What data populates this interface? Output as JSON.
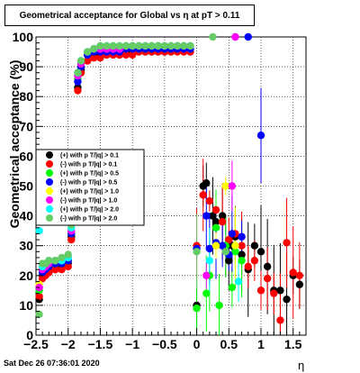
{
  "stamp": "Sat Dec 26 07:36:01 2020",
  "chart_data": {
    "type": "scatter",
    "title": "Geometrical acceptance for Global vs  η at pT > 0.11",
    "xlabel": "η",
    "ylabel": "Geometrical acceptance (%)",
    "xlim": [
      -2.5,
      1.7
    ],
    "ylim": [
      0,
      100
    ],
    "grid": true,
    "legend_position": "left-middle",
    "x_ticks": [
      "−2.5",
      "−2",
      "−1.5",
      "−1",
      "−0.5",
      "0",
      "0.5",
      "1",
      "1.5"
    ],
    "y_ticks": [
      "0",
      "10",
      "20",
      "30",
      "40",
      "50",
      "60",
      "70",
      "80",
      "90",
      "100"
    ],
    "series": [
      {
        "name": "(+) with p T/|q| > 0.1",
        "color": "#000000",
        "points": [
          [
            -2.45,
            12
          ],
          [
            -2.4,
            20
          ],
          [
            -2.35,
            21
          ],
          [
            -2.3,
            22
          ],
          [
            -2.2,
            22
          ],
          [
            -2.1,
            23
          ],
          [
            -2.0,
            24
          ],
          [
            -1.95,
            33
          ],
          [
            -1.85,
            83
          ],
          [
            -1.8,
            89
          ],
          [
            -1.7,
            92
          ],
          [
            -1.6,
            94
          ],
          [
            -1.5,
            94
          ],
          [
            -1.4,
            94
          ],
          [
            -1.3,
            94
          ],
          [
            -1.2,
            94
          ],
          [
            -1.1,
            95
          ],
          [
            -1.0,
            95
          ],
          [
            -0.9,
            95
          ],
          [
            -0.8,
            95
          ],
          [
            -0.7,
            95
          ],
          [
            -0.6,
            95
          ],
          [
            -0.5,
            95
          ],
          [
            -0.4,
            95
          ],
          [
            -0.3,
            96
          ],
          [
            -0.2,
            96
          ],
          [
            -0.1,
            95
          ],
          [
            0.0,
            10
          ],
          [
            0.1,
            50
          ],
          [
            0.15,
            51
          ],
          [
            0.25,
            40
          ],
          [
            0.3,
            38
          ],
          [
            0.4,
            40
          ],
          [
            0.45,
            30
          ],
          [
            0.5,
            25
          ],
          [
            0.55,
            30
          ],
          [
            0.6,
            33
          ],
          [
            0.7,
            27
          ],
          [
            0.8,
            22
          ],
          [
            0.9,
            30
          ],
          [
            1.0,
            28
          ],
          [
            1.1,
            23
          ],
          [
            1.2,
            15
          ],
          [
            1.3,
            15
          ],
          [
            1.4,
            12
          ],
          [
            1.5,
            20
          ],
          [
            1.6,
            17
          ]
        ]
      },
      {
        "name": "(-) with p T/|q| > 0.1",
        "color": "#ff0000",
        "points": [
          [
            -2.45,
            13
          ],
          [
            -2.4,
            19
          ],
          [
            -2.35,
            20
          ],
          [
            -2.3,
            21
          ],
          [
            -2.2,
            22
          ],
          [
            -2.1,
            22
          ],
          [
            -2.0,
            23
          ],
          [
            -1.95,
            32
          ],
          [
            -1.85,
            82
          ],
          [
            -1.8,
            88
          ],
          [
            -1.7,
            92
          ],
          [
            -1.6,
            93
          ],
          [
            -1.5,
            93
          ],
          [
            -1.4,
            94
          ],
          [
            -1.3,
            94
          ],
          [
            -1.2,
            94
          ],
          [
            -1.1,
            94
          ],
          [
            -1.0,
            94
          ],
          [
            -0.9,
            95
          ],
          [
            -0.8,
            95
          ],
          [
            -0.7,
            95
          ],
          [
            -0.6,
            95
          ],
          [
            -0.5,
            95
          ],
          [
            -0.4,
            95
          ],
          [
            -0.3,
            95
          ],
          [
            -0.2,
            95
          ],
          [
            -0.1,
            95
          ],
          [
            0.0,
            30
          ],
          [
            0.1,
            47
          ],
          [
            0.2,
            45
          ],
          [
            0.3,
            42
          ],
          [
            0.4,
            38
          ],
          [
            0.5,
            32
          ],
          [
            0.6,
            34
          ],
          [
            0.7,
            30
          ],
          [
            0.8,
            23
          ],
          [
            0.9,
            25
          ],
          [
            1.0,
            15
          ],
          [
            1.1,
            19
          ],
          [
            1.2,
            14
          ],
          [
            1.3,
            5
          ],
          [
            1.4,
            31
          ],
          [
            1.5,
            21
          ],
          [
            1.6,
            20
          ]
        ]
      },
      {
        "name": "(+) with p T/|q| > 0.5",
        "color": "#00ff00",
        "points": [
          [
            -2.45,
            15
          ],
          [
            -2.4,
            22
          ],
          [
            -2.35,
            23
          ],
          [
            -2.3,
            24
          ],
          [
            -2.2,
            24
          ],
          [
            -2.1,
            24
          ],
          [
            -2.0,
            25
          ],
          [
            -1.95,
            34
          ],
          [
            -1.85,
            86
          ],
          [
            -1.8,
            90
          ],
          [
            -1.7,
            94
          ],
          [
            -1.6,
            95
          ],
          [
            -1.5,
            96
          ],
          [
            -1.4,
            96
          ],
          [
            -1.3,
            96
          ],
          [
            -1.2,
            96
          ],
          [
            -1.1,
            96
          ],
          [
            -1.0,
            96
          ],
          [
            -0.9,
            96
          ],
          [
            -0.8,
            96
          ],
          [
            -0.7,
            97
          ],
          [
            -0.6,
            97
          ],
          [
            -0.5,
            96
          ],
          [
            -0.4,
            96
          ],
          [
            -0.3,
            97
          ],
          [
            -0.2,
            97
          ],
          [
            -0.1,
            96
          ],
          [
            0.0,
            9
          ],
          [
            0.15,
            14
          ],
          [
            0.2,
            20
          ],
          [
            0.3,
            36
          ],
          [
            0.35,
            10
          ],
          [
            0.45,
            30
          ],
          [
            0.55,
            16
          ],
          [
            0.6,
            28
          ],
          [
            0.7,
            25
          ]
        ]
      },
      {
        "name": "(-) with p T/|q| > 0.5",
        "color": "#0000ff",
        "points": [
          [
            -2.45,
            16
          ],
          [
            -2.4,
            21
          ],
          [
            -2.35,
            22
          ],
          [
            -2.3,
            23
          ],
          [
            -2.2,
            24
          ],
          [
            -2.1,
            24
          ],
          [
            -2.0,
            25
          ],
          [
            -1.95,
            34
          ],
          [
            -1.85,
            85
          ],
          [
            -1.8,
            90
          ],
          [
            -1.7,
            94
          ],
          [
            -1.6,
            95
          ],
          [
            -1.5,
            95
          ],
          [
            -1.4,
            95
          ],
          [
            -1.3,
            95
          ],
          [
            -1.2,
            95
          ],
          [
            -1.1,
            96
          ],
          [
            -1.0,
            96
          ],
          [
            -0.9,
            96
          ],
          [
            -0.8,
            96
          ],
          [
            -0.7,
            96
          ],
          [
            -0.6,
            96
          ],
          [
            -0.5,
            96
          ],
          [
            -0.4,
            96
          ],
          [
            -0.3,
            96
          ],
          [
            -0.2,
            96
          ],
          [
            -0.1,
            96
          ],
          [
            0.0,
            29
          ],
          [
            0.15,
            40
          ],
          [
            0.2,
            29
          ],
          [
            0.3,
            31
          ],
          [
            0.4,
            30
          ],
          [
            0.5,
            27
          ],
          [
            0.55,
            34
          ],
          [
            0.7,
            33
          ],
          [
            0.8,
            100
          ],
          [
            1.0,
            67
          ]
        ]
      },
      {
        "name": "(+) with p T/|q| > 1.0",
        "color": "#ffff00",
        "points": [
          [
            -2.45,
            17
          ],
          [
            -2.4,
            23
          ],
          [
            -2.35,
            24
          ],
          [
            -2.3,
            24
          ],
          [
            -2.2,
            25
          ],
          [
            -2.1,
            25
          ],
          [
            -2.0,
            26
          ],
          [
            -1.95,
            35
          ],
          [
            -1.85,
            87
          ],
          [
            -1.8,
            91
          ],
          [
            -1.7,
            95
          ],
          [
            -1.6,
            96
          ],
          [
            -1.5,
            96
          ],
          [
            -1.4,
            96
          ],
          [
            -1.3,
            96
          ],
          [
            -1.2,
            96
          ],
          [
            -1.1,
            97
          ],
          [
            -1.0,
            97
          ],
          [
            -0.9,
            97
          ],
          [
            -0.8,
            97
          ],
          [
            -0.7,
            97
          ],
          [
            -0.6,
            97
          ],
          [
            -0.5,
            97
          ],
          [
            -0.4,
            97
          ],
          [
            -0.3,
            97
          ],
          [
            -0.2,
            97
          ],
          [
            -0.1,
            97
          ],
          [
            0.3,
            30
          ],
          [
            0.45,
            50
          ],
          [
            0.6,
            30
          ]
        ]
      },
      {
        "name": "(-) with p T/|q| > 1.0",
        "color": "#ff00ff",
        "points": [
          [
            -2.45,
            16
          ],
          [
            -2.4,
            22
          ],
          [
            -2.35,
            23
          ],
          [
            -2.3,
            24
          ],
          [
            -2.2,
            25
          ],
          [
            -2.1,
            25
          ],
          [
            -2.0,
            26
          ],
          [
            -1.95,
            35
          ],
          [
            -1.85,
            87
          ],
          [
            -1.8,
            91
          ],
          [
            -1.7,
            95
          ],
          [
            -1.6,
            96
          ],
          [
            -1.5,
            96
          ],
          [
            -1.4,
            96
          ],
          [
            -1.3,
            96
          ],
          [
            -1.2,
            96
          ],
          [
            -1.1,
            97
          ],
          [
            -1.0,
            97
          ],
          [
            -0.9,
            97
          ],
          [
            -0.8,
            97
          ],
          [
            -0.7,
            97
          ],
          [
            -0.6,
            97
          ],
          [
            -0.5,
            97
          ],
          [
            -0.4,
            97
          ],
          [
            -0.3,
            97
          ],
          [
            -0.2,
            97
          ],
          [
            -0.1,
            97
          ],
          [
            0.15,
            20
          ],
          [
            0.55,
            50
          ],
          [
            0.6,
            100
          ]
        ]
      },
      {
        "name": "(+) with p T/|q| > 2.0",
        "color": "#00ffff",
        "points": [
          [
            -2.45,
            35
          ],
          [
            -2.4,
            23
          ],
          [
            -2.35,
            24
          ],
          [
            -2.3,
            25
          ],
          [
            -2.2,
            25
          ],
          [
            -2.1,
            25
          ],
          [
            -2.0,
            26
          ],
          [
            -1.95,
            36
          ],
          [
            -1.85,
            88
          ],
          [
            -1.8,
            92
          ],
          [
            -1.7,
            95
          ],
          [
            -1.6,
            96
          ],
          [
            -1.5,
            97
          ],
          [
            -1.4,
            97
          ],
          [
            -1.3,
            97
          ],
          [
            -1.2,
            97
          ],
          [
            -1.1,
            97
          ],
          [
            -1.0,
            97
          ],
          [
            -0.9,
            97
          ],
          [
            -0.8,
            97
          ],
          [
            -0.7,
            97
          ],
          [
            -0.6,
            97
          ],
          [
            -0.5,
            97
          ],
          [
            -0.4,
            97
          ],
          [
            -0.3,
            97
          ],
          [
            -0.2,
            97
          ],
          [
            -0.1,
            97
          ],
          [
            0.2,
            25
          ],
          [
            0.65,
            18
          ]
        ]
      },
      {
        "name": "(-) with p T/|q| > 2.0",
        "color": "#66cc66",
        "points": [
          [
            -2.45,
            7
          ],
          [
            -2.4,
            24
          ],
          [
            -2.35,
            24
          ],
          [
            -2.3,
            25
          ],
          [
            -2.2,
            25
          ],
          [
            -2.1,
            26
          ],
          [
            -2.0,
            27
          ],
          [
            -1.95,
            37
          ],
          [
            -1.85,
            88
          ],
          [
            -1.8,
            92
          ],
          [
            -1.7,
            95
          ],
          [
            -1.6,
            96
          ],
          [
            -1.5,
            97
          ],
          [
            -1.4,
            97
          ],
          [
            -1.3,
            97
          ],
          [
            -1.2,
            97
          ],
          [
            -1.1,
            97
          ],
          [
            -1.0,
            97
          ],
          [
            -0.9,
            97
          ],
          [
            -0.8,
            97
          ],
          [
            -0.7,
            97
          ],
          [
            -0.6,
            97
          ],
          [
            -0.5,
            97
          ],
          [
            -0.4,
            97
          ],
          [
            -0.3,
            97
          ],
          [
            -0.2,
            97
          ],
          [
            -0.1,
            97
          ],
          [
            0.0,
            28
          ],
          [
            0.25,
            100
          ],
          [
            0.45,
            28
          ]
        ]
      }
    ]
  }
}
